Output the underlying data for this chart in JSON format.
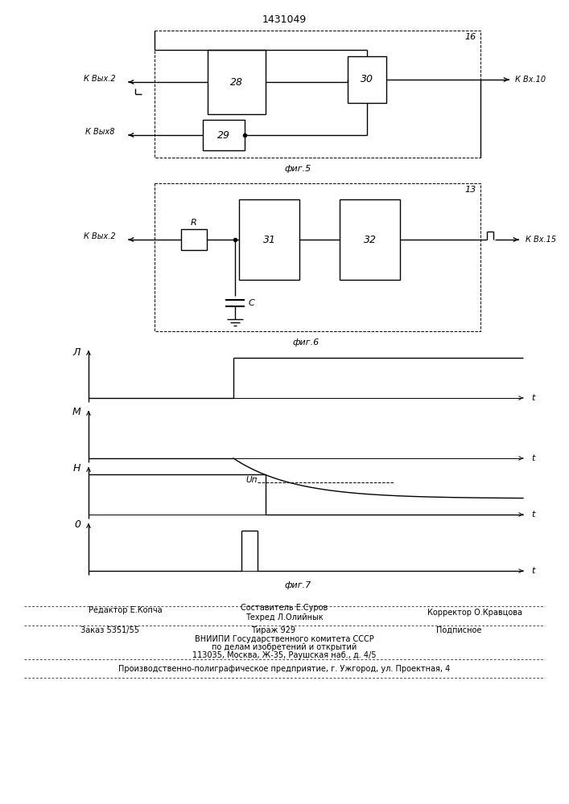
{
  "title": "1431049",
  "bg_color": "#ffffff",
  "fig5_label": "фиг.5",
  "fig6_label": "фиг.6",
  "fig7_label": "фиг.7",
  "box28_label": "28",
  "box29_label": "29",
  "box30_label": "30",
  "box31_label": "31",
  "box32_label": "32",
  "label_16": "16",
  "label_13": "13",
  "label_kvyx2_fig5": "К Вых.2",
  "label_kvyx8": "К Вых8",
  "label_kvx10": "К Вх.10",
  "label_kvyx2_fig6": "К Вых.2",
  "label_kvx15": "К Вх.15",
  "label_R": "R",
  "label_C": "C",
  "label_L": "Л",
  "label_M": "М",
  "label_H": "Н",
  "label_O": "0",
  "label_Un": "Uп",
  "label_t": "t",
  "text_sostavitel": "Составитель Е.Суров",
  "text_redaktor": "Редактор Е.Копча",
  "text_tehred": "Техред Л.Олийнык",
  "text_korrektor": "Корректор О.Кравцова",
  "text_zakaz": "Заказ 5351/55",
  "text_tirazh": "Тираж 929",
  "text_podpisnoe": "Подписное",
  "text_vniip1": "ВНИИПИ Государственного комитета СССР",
  "text_vniip2": "по делам изобретений и открытий",
  "text_vniip3": "113035, Москва, Ж-35, Раушская наб., д. 4/5",
  "text_pred": "Производственно-полиграфическое предприятие, г. Ужгород, ул. Проектная, 4"
}
